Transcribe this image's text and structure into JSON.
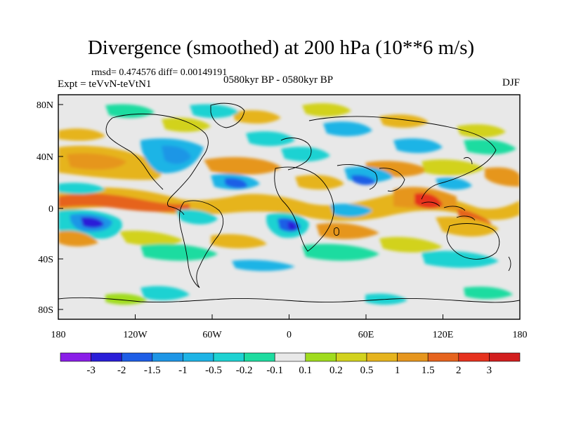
{
  "title": "Divergence (smoothed) at 200 hPa (10**6 m/s)",
  "stats": "rmsd= 0.474576  diff= 0.00149191",
  "expt": "Expt = teVvN-teVtN1",
  "period": "0580kyr BP - 0580kyr BP",
  "season": "DJF",
  "lat_labels": [
    "80N",
    "40N",
    "0",
    "40S",
    "80S"
  ],
  "lon_labels": [
    "180",
    "120W",
    "60W",
    "0",
    "60E",
    "120E",
    "180"
  ],
  "colorbar": {
    "labels": [
      "-3",
      "-2",
      "-1.5",
      "-1",
      "-0.5",
      "-0.2",
      "-0.1",
      "0.1",
      "0.2",
      "0.5",
      "1",
      "1.5",
      "2",
      "3"
    ],
    "colors": [
      "#8a1ee8",
      "#2a1ed8",
      "#1e5ee6",
      "#1e96e6",
      "#1eb4e6",
      "#1ed2d2",
      "#1edca0",
      "#e8e8e8",
      "#a0dc1e",
      "#d2d21e",
      "#e6b41e",
      "#e6961e",
      "#e6641e",
      "#e6321e",
      "#d21e1e"
    ]
  },
  "palette": {
    "ocean_neutral": "#e8e8e8",
    "coast": "#000000"
  }
}
